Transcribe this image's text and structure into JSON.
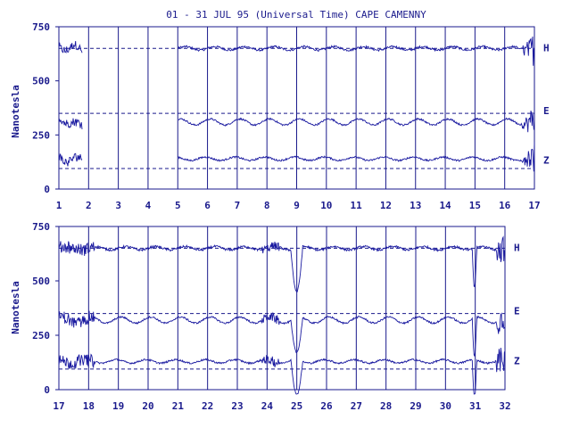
{
  "title": "01 - 31 JUL 95 (Universal Time) CAPE CAMENNY",
  "ylabel": "Nanotesla",
  "colors": {
    "trace": "#1a1aa0",
    "axis": "#1a1a8c"
  },
  "chart_data": [
    {
      "type": "line",
      "panel": "top",
      "x_ticks": [
        "1",
        "2",
        "3",
        "4",
        "5",
        "6",
        "7",
        "8",
        "9",
        "10",
        "11",
        "12",
        "13",
        "14",
        "15",
        "16",
        "17"
      ],
      "xlim": [
        1,
        17
      ],
      "ylim": [
        0,
        750
      ],
      "y_ticks": [
        "0",
        "250",
        "500",
        "750"
      ],
      "grid": true,
      "reference_lines": [
        650,
        350,
        95
      ],
      "series": [
        {
          "name": "H",
          "baseline": 650,
          "data_gaps": [
            [
              1.8,
              5.0
            ]
          ]
        },
        {
          "name": "E",
          "baseline": 310,
          "data_gaps": [
            [
              1.8,
              5.0
            ]
          ]
        },
        {
          "name": "Z",
          "baseline": 140,
          "data_gaps": [
            [
              1.8,
              5.0
            ]
          ]
        }
      ]
    },
    {
      "type": "line",
      "panel": "bottom",
      "x_ticks": [
        "17",
        "18",
        "19",
        "20",
        "21",
        "22",
        "23",
        "24",
        "25",
        "26",
        "27",
        "28",
        "29",
        "30",
        "31",
        "32"
      ],
      "xlim": [
        17,
        32
      ],
      "ylim": [
        0,
        750
      ],
      "y_ticks": [
        "0",
        "250",
        "500",
        "750"
      ],
      "grid": true,
      "reference_lines": [
        650,
        350,
        95
      ],
      "series": [
        {
          "name": "H",
          "baseline": 650,
          "data_gaps": []
        },
        {
          "name": "E",
          "baseline": 320,
          "data_gaps": []
        },
        {
          "name": "Z",
          "baseline": 130,
          "data_gaps": []
        }
      ]
    }
  ]
}
